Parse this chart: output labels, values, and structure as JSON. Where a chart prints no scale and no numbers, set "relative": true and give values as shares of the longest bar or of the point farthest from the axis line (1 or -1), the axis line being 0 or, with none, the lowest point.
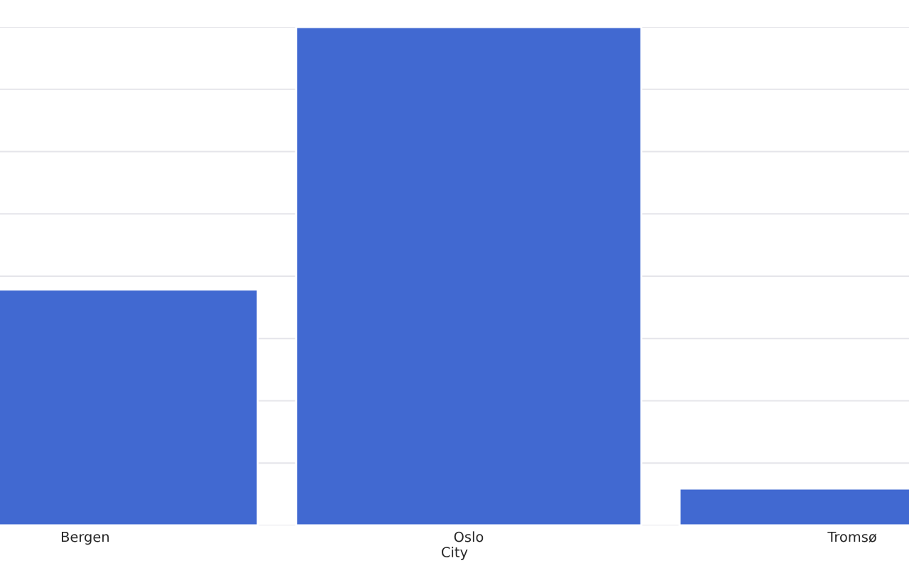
{
  "chart_data": {
    "type": "bar",
    "xlabel": "City",
    "categories": [
      "Bergen",
      "Oslo",
      "Tromsø"
    ],
    "values": [
      0.473,
      1,
      0.074
    ],
    "color": "#4169d1",
    "relative": true,
    "grid": "y"
  }
}
